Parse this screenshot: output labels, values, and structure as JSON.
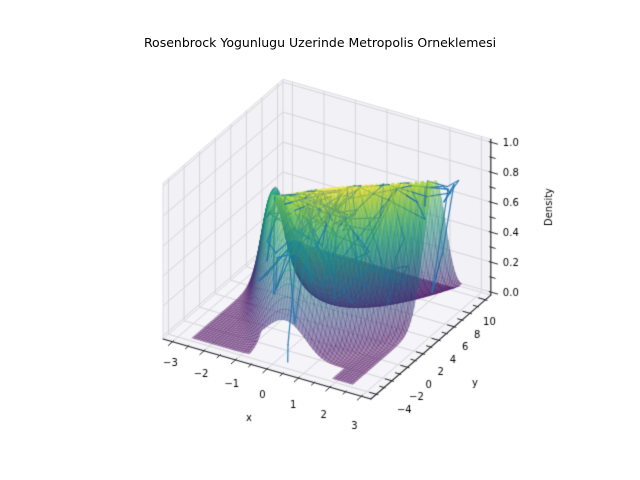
{
  "chart_data": {
    "type": "surface3d_with_trace",
    "title": "Rosenbrock Yogunlugu Uzerinde Metropolis Orneklemesi",
    "xlabel": "x",
    "ylabel": "y",
    "zlabel": "Density",
    "x_ticks": [
      -3,
      -2,
      -1,
      0,
      1,
      2,
      3
    ],
    "x_minor_step": 0.5,
    "y_ticks": [
      -4,
      -2,
      0,
      2,
      4,
      6,
      8,
      10
    ],
    "y_minor_step": 1,
    "z_ticks": [
      0.0,
      0.2,
      0.4,
      0.6,
      0.8,
      1.0
    ],
    "z_minor_step": 0.1,
    "xlim": [
      -3.3,
      3.3
    ],
    "ylim": [
      -4.7,
      10.7
    ],
    "zlim": [
      -0.02,
      1.02
    ],
    "view": {
      "elev": 30,
      "azim": -60,
      "box_aspect": [
        4,
        4,
        3
      ]
    },
    "grid": true,
    "surface": {
      "formula": "exp(-((1-x)^2 + 5*(y-x^2)^2)/20)",
      "a": 1,
      "b": 5,
      "k": 20,
      "domain_x": [
        -2.55,
        2.55
      ],
      "domain_y": [
        -4.0,
        10.0
      ],
      "nx": 56,
      "ny": 64,
      "colormap": "viridis",
      "alpha": 0.5,
      "zmax_observed": 1.0,
      "masked_region": {
        "x": [
          -0.75,
          1.9
        ],
        "y_below": -2.55
      }
    },
    "trace": {
      "algorithm": "metropolis",
      "n_steps": 270,
      "start": [
        0.45,
        -3.85
      ],
      "proposal_std": [
        0.75,
        1.5
      ],
      "bounds_x": [
        -2.9,
        2.9
      ],
      "bounds_y": [
        -4.2,
        10.2
      ],
      "seed": 20240613,
      "color": "#1f77b4",
      "alpha": 0.85,
      "linewidth": 1.3
    },
    "colors": {
      "background": "#ffffff",
      "pane_wall": "#f2f1f5",
      "pane_floor": "#f5f4f8",
      "pane_edge": "#dddce1",
      "grid_line": "#d6d5da",
      "spine": "#262626",
      "tick_label": "#000000",
      "viridis_stops": [
        [
          0.0,
          68,
          1,
          84
        ],
        [
          0.13,
          71,
          44,
          122
        ],
        [
          0.25,
          59,
          81,
          139
        ],
        [
          0.38,
          44,
          113,
          142
        ],
        [
          0.5,
          33,
          144,
          141
        ],
        [
          0.63,
          39,
          173,
          129
        ],
        [
          0.75,
          92,
          200,
          99
        ],
        [
          0.88,
          170,
          220,
          50
        ],
        [
          1.0,
          253,
          231,
          37
        ]
      ]
    }
  }
}
